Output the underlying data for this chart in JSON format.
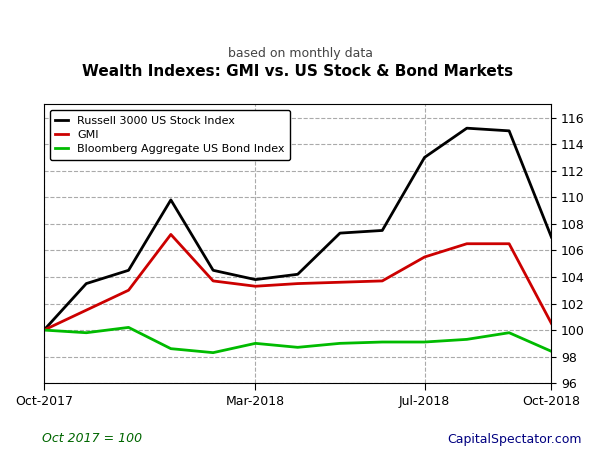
{
  "title": "Wealth Indexes: GMI vs. US Stock & Bond Markets",
  "subtitle": "based on monthly data",
  "footnote_left": "Oct 2017 = 100",
  "footnote_right": "CapitalSpectator.com",
  "x_labels": [
    "Oct-2017",
    "Mar-2018",
    "Jul-2018",
    "Oct-2018"
  ],
  "x_tick_positions": [
    0,
    5,
    9,
    12
  ],
  "x_indices": [
    0,
    1,
    2,
    3,
    4,
    5,
    6,
    7,
    8,
    9,
    10,
    11,
    12
  ],
  "russell": [
    100.0,
    103.5,
    104.5,
    109.8,
    104.5,
    103.8,
    104.2,
    107.3,
    107.5,
    113.0,
    115.2,
    115.0,
    107.0
  ],
  "gmi": [
    100.0,
    101.5,
    103.0,
    107.2,
    103.7,
    103.3,
    103.5,
    103.6,
    103.7,
    105.5,
    106.5,
    106.5,
    100.5
  ],
  "bond": [
    100.0,
    99.8,
    100.2,
    98.6,
    98.3,
    99.0,
    98.7,
    99.0,
    99.1,
    99.1,
    99.3,
    99.8,
    98.4
  ],
  "russell_color": "#000000",
  "gmi_color": "#cc0000",
  "bond_color": "#00bb00",
  "ylim": [
    96,
    117
  ],
  "yticks": [
    96,
    98,
    100,
    102,
    104,
    106,
    108,
    110,
    112,
    114,
    116
  ],
  "bg_color": "#ffffff",
  "grid_color": "#aaaaaa",
  "line_width": 2.0
}
